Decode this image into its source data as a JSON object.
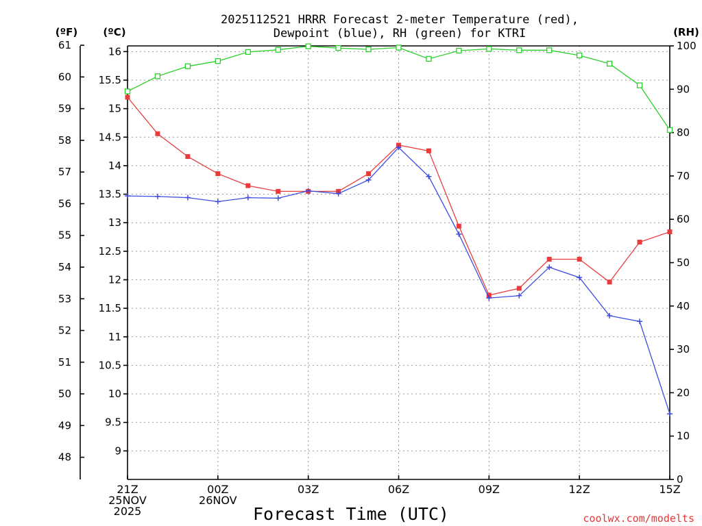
{
  "chart_data": {
    "type": "line",
    "title_lines": [
      "2025112521 HRRR Forecast 2-meter Temperature (red),",
      "Dewpoint (blue), RH (green) for KTRI"
    ],
    "xlabel": "Forecast Time (UTC)",
    "credit": "coolwx.com/modelts",
    "left_units_f": "(ºF)",
    "left_units_c": "(ºC)",
    "right_units": "(RH)",
    "x_hours": [
      0,
      1,
      2,
      3,
      4,
      5,
      6,
      7,
      8,
      9,
      10,
      11,
      12,
      13,
      14,
      15,
      16,
      17,
      18
    ],
    "x_ticks": [
      {
        "h": 0,
        "lines": [
          "21Z",
          "25NOV",
          "2025"
        ]
      },
      {
        "h": 3,
        "lines": [
          "00Z",
          "26NOV"
        ]
      },
      {
        "h": 6,
        "lines": [
          "03Z"
        ]
      },
      {
        "h": 9,
        "lines": [
          "06Z"
        ]
      },
      {
        "h": 12,
        "lines": [
          "09Z"
        ]
      },
      {
        "h": 15,
        "lines": [
          "12Z"
        ]
      },
      {
        "h": 18,
        "lines": [
          "15Z"
        ]
      }
    ],
    "c_range": [
      8.5,
      16.1
    ],
    "c_ticks": [
      9,
      9.5,
      10,
      10.5,
      11,
      11.5,
      12,
      12.5,
      13,
      13.5,
      14,
      14.5,
      15,
      15.5,
      16
    ],
    "f_ticks": [
      48,
      49,
      50,
      51,
      52,
      53,
      54,
      55,
      56,
      57,
      58,
      59,
      60,
      61
    ],
    "rh_range": [
      0,
      100
    ],
    "rh_ticks": [
      0,
      10,
      20,
      30,
      40,
      50,
      60,
      70,
      80,
      90,
      100
    ],
    "grid": true,
    "series": [
      {
        "name": "Temperature",
        "axis": "C",
        "color": "#e83c3c",
        "marker": "filled-square",
        "values": [
          15.2,
          14.56,
          14.16,
          13.86,
          13.65,
          13.55,
          13.55,
          13.55,
          13.86,
          14.36,
          14.26,
          12.94,
          11.73,
          11.85,
          12.36,
          12.36,
          11.96,
          12.66,
          12.84
        ]
      },
      {
        "name": "Dewpoint",
        "axis": "C",
        "color": "#3c4ae0",
        "marker": "plus",
        "values": [
          13.47,
          13.46,
          13.44,
          13.37,
          13.44,
          13.43,
          13.56,
          13.51,
          13.75,
          14.32,
          13.81,
          12.8,
          11.68,
          11.72,
          12.22,
          12.04,
          11.37,
          11.27,
          9.65
        ]
      },
      {
        "name": "RH",
        "axis": "RH",
        "color": "#2ad02a",
        "marker": "open-square",
        "values": [
          89.5,
          93,
          95.3,
          96.5,
          98.6,
          99.1,
          99.9,
          99.5,
          99.2,
          99.6,
          97,
          98.9,
          99.3,
          99,
          99,
          97.8,
          95.9,
          90.9,
          80.6
        ]
      }
    ]
  }
}
